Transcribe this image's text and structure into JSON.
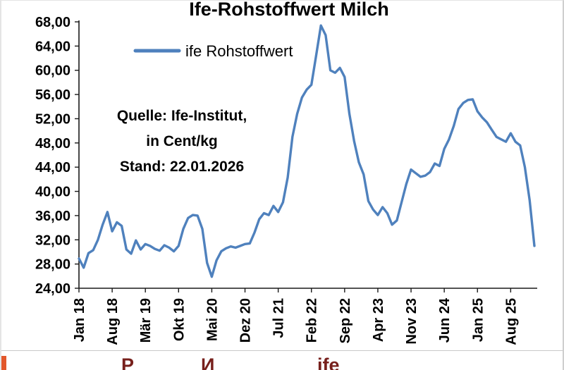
{
  "annotation": {
    "line1": "Quelle: Ife-Institut,",
    "line2": "in Cent/kg",
    "line3": "Stand: 22.01.2026"
  },
  "legend": {
    "label": "ife Rohstoffwert",
    "line_color": "#4f81bd"
  },
  "chart_data": {
    "type": "line",
    "title": "Ife-Rohstoffwert Milch",
    "xlabel": "",
    "ylabel": "Cent/kg",
    "x_range_note": "monthly values Jan 2018 - Jan 2026",
    "x_tick_labels": [
      "Jan 18",
      "Aug 18",
      "Mär 19",
      "Okt 19",
      "Mai 20",
      "Dez 20",
      "Jul 21",
      "Feb 22",
      "Sep 22",
      "Apr 23",
      "Nov 23",
      "Jun 24",
      "Jan 25",
      "Aug 25"
    ],
    "x_tick_every_months": 7,
    "y_tick_labels": [
      "68,00",
      "64,00",
      "60,00",
      "56,00",
      "52,00",
      "48,00",
      "44,00",
      "40,00",
      "36,00",
      "32,00",
      "28,00",
      "24,00"
    ],
    "y_tick_step": 4,
    "ylim": [
      24,
      68
    ],
    "grid": false,
    "legend_position": "top-left-inside",
    "series": [
      {
        "name": "ife Rohstoffwert",
        "color": "#4f81bd",
        "unit": "Cent/kg",
        "values": [
          28.9,
          27.4,
          29.8,
          30.3,
          32.0,
          34.5,
          36.6,
          33.4,
          34.9,
          34.3,
          30.4,
          29.7,
          31.9,
          30.4,
          31.3,
          31.0,
          30.5,
          30.2,
          31.1,
          30.7,
          30.1,
          31.0,
          33.8,
          35.6,
          36.1,
          36.0,
          33.8,
          28.2,
          25.9,
          28.6,
          30.1,
          30.6,
          30.9,
          30.7,
          31.0,
          31.3,
          31.4,
          33.2,
          35.4,
          36.4,
          36.1,
          37.6,
          36.6,
          38.2,
          42.3,
          49.0,
          52.8,
          55.5,
          56.8,
          57.6,
          62.5,
          67.4,
          65.8,
          60.0,
          59.6,
          60.4,
          58.9,
          52.8,
          48.3,
          44.8,
          42.8,
          38.4,
          37.0,
          36.1,
          37.4,
          36.4,
          34.5,
          35.2,
          38.2,
          41.2,
          43.6,
          43.0,
          42.4,
          42.6,
          43.2,
          44.6,
          44.2,
          47.0,
          48.6,
          50.8,
          53.6,
          54.6,
          55.1,
          55.2,
          53.2,
          52.2,
          51.4,
          50.2,
          49.0,
          48.6,
          48.2,
          49.6,
          48.2,
          47.6,
          44.0,
          38.5,
          31.0
        ]
      }
    ]
  },
  "footer": {
    "fragments": [
      "Р",
      "И",
      "ife"
    ],
    "accent_color": "#e2572b"
  }
}
